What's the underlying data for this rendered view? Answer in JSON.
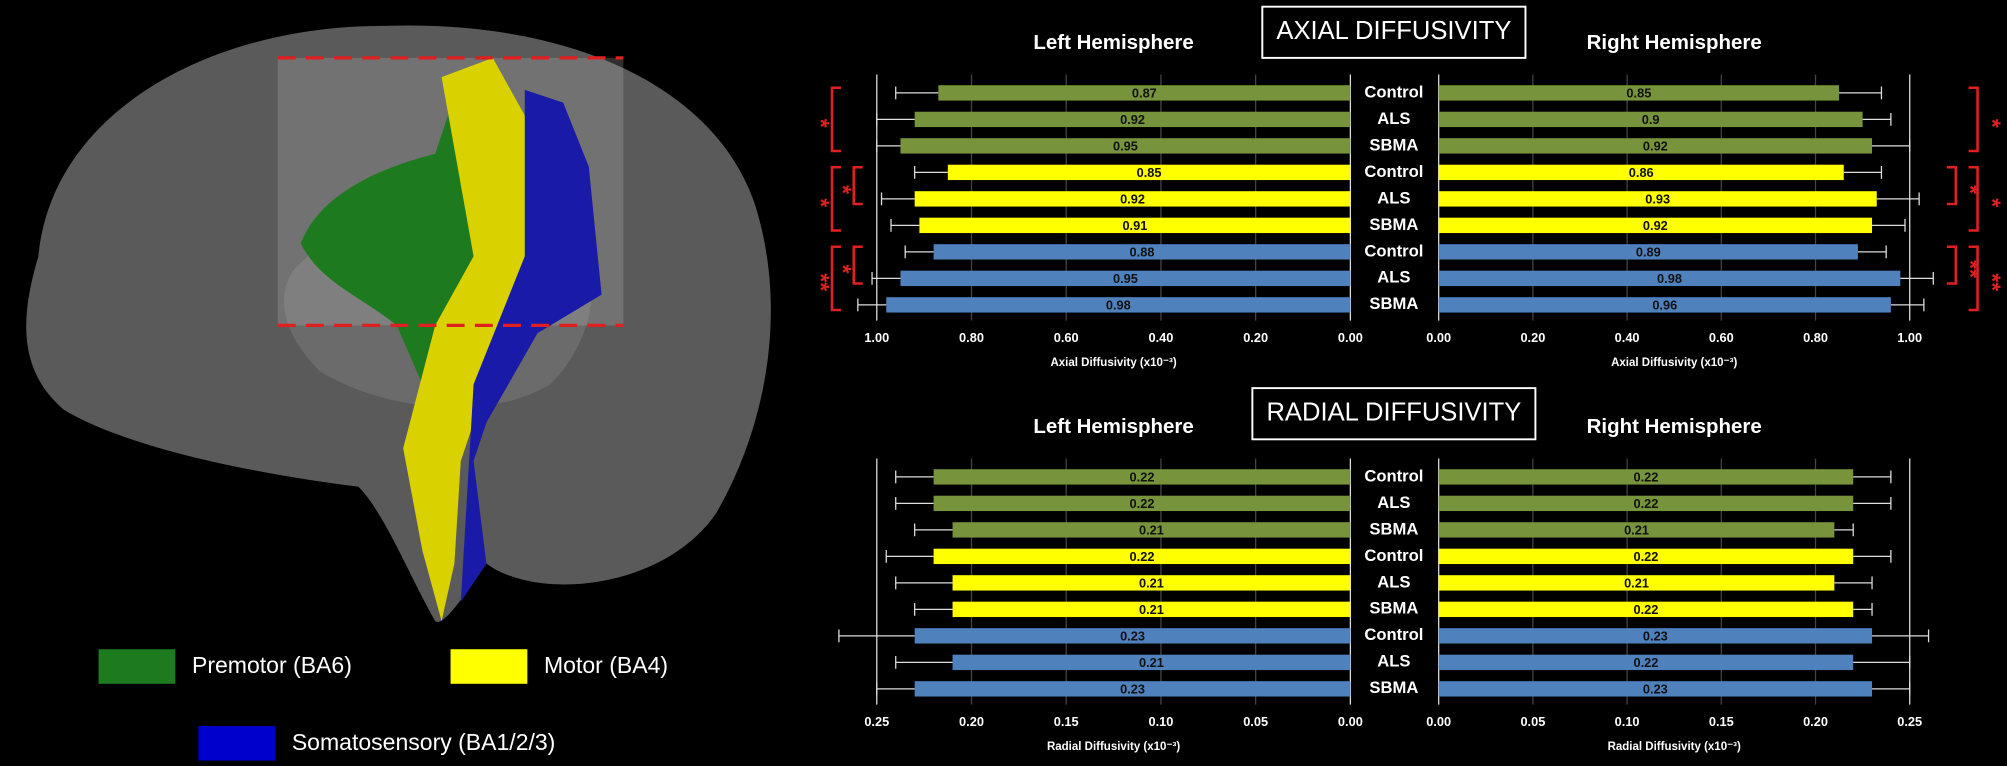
{
  "legend": [
    {
      "name": "Premotor (BA6)",
      "color": "#1e7a1e"
    },
    {
      "name": "Motor (BA4)",
      "color": "#ffff00"
    },
    {
      "name": "Somatosensory (BA1/2/3)",
      "color": "#0000cc"
    }
  ],
  "chart_data": [
    {
      "type": "bar",
      "panel_title": "AXIAL DIFFUSIVITY",
      "title": "Left Hemisphere",
      "x_label": "Axial Diffusivity (x10⁻³)",
      "reversed": true,
      "categories": [
        "Control",
        "ALS",
        "SBMA",
        "Control",
        "ALS",
        "SBMA",
        "Control",
        "ALS",
        "SBMA"
      ],
      "values": [
        0.87,
        0.92,
        0.95,
        0.85,
        0.92,
        0.91,
        0.88,
        0.95,
        0.98
      ],
      "errors": [
        0.09,
        0.08,
        0.05,
        0.07,
        0.07,
        0.06,
        0.06,
        0.06,
        0.06
      ],
      "colors": [
        "#77933c",
        "#77933c",
        "#77933c",
        "#ffff00",
        "#ffff00",
        "#ffff00",
        "#4f81bd",
        "#4f81bd",
        "#4f81bd"
      ],
      "xlim": [
        0,
        1
      ],
      "xticks": [
        {
          "value": 1,
          "label": "1.00"
        },
        {
          "value": 0.8,
          "label": "0.80"
        },
        {
          "value": 0.6,
          "label": "0.60"
        },
        {
          "value": 0.4,
          "label": "0.40"
        },
        {
          "value": 0.2,
          "label": "0.20"
        },
        {
          "value": 0,
          "label": "0.00"
        }
      ],
      "annotations": [
        {
          "label": "*",
          "from": 0,
          "to": 2
        },
        {
          "label": "*",
          "from": 3,
          "to": 5
        },
        {
          "label": "*",
          "from": 3,
          "to": 4
        },
        {
          "label": "**",
          "from": 6,
          "to": 8
        },
        {
          "label": "*",
          "from": 6,
          "to": 7
        }
      ]
    },
    {
      "type": "bar",
      "title": "Right Hemisphere",
      "x_label": "Axial Diffusivity (x10⁻³)",
      "reversed": false,
      "values": [
        0.85,
        0.9,
        0.92,
        0.86,
        0.93,
        0.92,
        0.89,
        0.98,
        0.96
      ],
      "errors": [
        0.09,
        0.06,
        0.08,
        0.08,
        0.09,
        0.07,
        0.06,
        0.07,
        0.07
      ],
      "colors": [
        "#77933c",
        "#77933c",
        "#77933c",
        "#ffff00",
        "#ffff00",
        "#ffff00",
        "#4f81bd",
        "#4f81bd",
        "#4f81bd"
      ],
      "xlim": [
        0,
        1
      ],
      "xticks": [
        {
          "value": 0,
          "label": "0.00"
        },
        {
          "value": 0.2,
          "label": "0.20"
        },
        {
          "value": 0.4,
          "label": "0.40"
        },
        {
          "value": 0.6,
          "label": "0.60"
        },
        {
          "value": 0.8,
          "label": "0.80"
        },
        {
          "value": 1,
          "label": "1.00"
        }
      ],
      "annotations": [
        {
          "label": "*",
          "from": 0,
          "to": 2
        },
        {
          "label": "*",
          "from": 3,
          "to": 5
        },
        {
          "label": "*",
          "from": 3,
          "to": 4
        },
        {
          "label": "**",
          "from": 6,
          "to": 8
        },
        {
          "label": "**",
          "from": 6,
          "to": 7
        }
      ]
    },
    {
      "type": "bar",
      "panel_title": "RADIAL DIFFUSIVITY",
      "title": "Left Hemisphere",
      "x_label": "Radial Diffusivity (x10⁻³)",
      "reversed": true,
      "categories": [
        "Control",
        "ALS",
        "SBMA",
        "Control",
        "ALS",
        "SBMA",
        "Control",
        "ALS",
        "SBMA"
      ],
      "values": [
        0.22,
        0.22,
        0.21,
        0.22,
        0.21,
        0.21,
        0.23,
        0.21,
        0.23
      ],
      "errors": [
        0.02,
        0.02,
        0.02,
        0.025,
        0.03,
        0.02,
        0.04,
        0.03,
        0.02
      ],
      "colors": [
        "#77933c",
        "#77933c",
        "#77933c",
        "#ffff00",
        "#ffff00",
        "#ffff00",
        "#4f81bd",
        "#4f81bd",
        "#4f81bd"
      ],
      "xlim": [
        0,
        0.25
      ],
      "xticks": [
        0.25,
        {
          "value": 0.2,
          "label": "0.20"
        },
        0.15,
        {
          "value": 0.1,
          "label": "0.10"
        },
        0.05,
        {
          "value": 0,
          "label": "0.00"
        }
      ],
      "annotations": []
    },
    {
      "type": "bar",
      "title": "Right Hemisphere",
      "x_label": "Radial Diffusivity (x10⁻³)",
      "reversed": false,
      "values": [
        0.22,
        0.22,
        0.21,
        0.22,
        0.21,
        0.22,
        0.23,
        0.22,
        0.23
      ],
      "errors": [
        0.02,
        0.02,
        0.01,
        0.02,
        0.02,
        0.01,
        0.03,
        0.03,
        0.02
      ],
      "colors": [
        "#77933c",
        "#77933c",
        "#77933c",
        "#ffff00",
        "#ffff00",
        "#ffff00",
        "#4f81bd",
        "#4f81bd",
        "#4f81bd"
      ],
      "xlim": [
        0,
        0.25
      ],
      "xticks": [
        {
          "value": 0,
          "label": "0.00"
        },
        0.05,
        {
          "value": 0.1,
          "label": "0.10"
        },
        0.15,
        {
          "value": 0.2,
          "label": "0.20"
        },
        0.25
      ],
      "annotations": []
    }
  ]
}
